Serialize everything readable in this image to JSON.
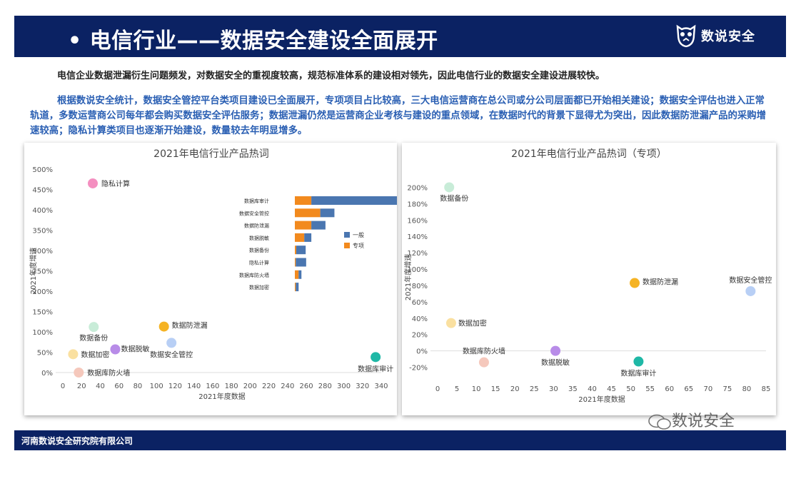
{
  "header": {
    "title": "电信行业——数据安全建设全面展开",
    "bullet": "•",
    "logo_text": "数说安全"
  },
  "intro": "电信企业数据泄漏衍生问题频发，对数据安全的重视度较高，规范标准体系的建设相对领先，因此电信行业的数据安全建设进展较快。",
  "paragraph": "根据数说安全统计，数据安全管控平台类项目建设已全面展开，专项项目占比较高，三大电信运营商在总公司或分公司层面都已开始相关建设；数据安全评估也进入正常轨道，多数运营商公司每年都会购买数据安全评估服务；数据泄漏仍然是运营商企业考核与建设的重点领域，在数据时代的背景下显得尤为突出，因此数据防泄漏产品的采购增速较高；隐私计算类项目也逐渐开始建设，数量较去年明显增多。",
  "watermark": "数说安全",
  "footer": {
    "company": "河南数说安全研究院有限公司"
  },
  "chart_data": [
    {
      "type": "scatter",
      "title": "2021年电信行业产品热词",
      "xlabel": "2021年度数据",
      "ylabel": "2021年度增速",
      "xlim": [
        0,
        340
      ],
      "ylim": [
        0,
        5
      ],
      "x_ticks": [
        "0",
        "20",
        "40",
        "60",
        "80",
        "100",
        "120",
        "140",
        "160",
        "180",
        "200",
        "220",
        "240",
        "260",
        "280",
        "300",
        "320",
        "340"
      ],
      "y_ticks": [
        "0%",
        "50%",
        "100%",
        "150%",
        "200%",
        "250%",
        "300%",
        "350%",
        "400%",
        "450%",
        "500%"
      ],
      "points": [
        {
          "label": "隐私计算",
          "x": 32,
          "y": 4.65,
          "color": "#f48fc0"
        },
        {
          "label": "数据备份",
          "x": 33,
          "y": 1.12,
          "color": "#c8ecd8"
        },
        {
          "label": "数据防泄漏",
          "x": 108,
          "y": 1.13,
          "color": "#f5b324"
        },
        {
          "label": "数据脱敏",
          "x": 56,
          "y": 0.57,
          "color": "#b88ce8"
        },
        {
          "label": "数据安全管控",
          "x": 116,
          "y": 0.73,
          "color": "#b8cff5"
        },
        {
          "label": "数据加密",
          "x": 11,
          "y": 0.45,
          "color": "#fae0a0"
        },
        {
          "label": "数据库防火墙",
          "x": 17,
          "y": 0.0,
          "color": "#f5c8bc"
        },
        {
          "label": "数据库审计",
          "x": 334,
          "y": 0.38,
          "color": "#1fb8a6"
        }
      ],
      "inset": {
        "type": "bar",
        "orientation": "horizontal",
        "stacked": true,
        "categories": [
          "数据库审计",
          "数据安全管控",
          "数据防泄漏",
          "数据脱敏",
          "数据备份",
          "隐私计算",
          "数据库防火墙",
          "数据加密"
        ],
        "series": [
          {
            "name": "专项",
            "color": "#f28a1e",
            "values": [
              35,
              54,
              35,
              20,
              3,
              2,
              8,
              2
            ]
          },
          {
            "name": "一般",
            "color": "#4a76b0",
            "values": [
              190,
              30,
              30,
              15,
              20,
              22,
              6,
              6
            ]
          }
        ],
        "legend": "right"
      }
    },
    {
      "type": "scatter",
      "title": "2021年电信行业产品热词（专项）",
      "xlabel": "2021年度数据",
      "ylabel": "2021年度增速",
      "xlim": [
        0,
        85
      ],
      "ylim": [
        -0.3,
        2.1
      ],
      "x_ticks": [
        "0",
        "5",
        "10",
        "15",
        "20",
        "25",
        "30",
        "35",
        "40",
        "45",
        "50",
        "55",
        "60",
        "65",
        "70",
        "75",
        "80",
        "85"
      ],
      "y_ticks": [
        "-20%",
        "0%",
        "20%",
        "40%",
        "60%",
        "80%",
        "100%",
        "120%",
        "140%",
        "160%",
        "180%",
        "200%"
      ],
      "points": [
        {
          "label": "数据备份",
          "x": 3,
          "y": 2.0,
          "color": "#c8ecd8"
        },
        {
          "label": "数据防泄漏",
          "x": 51,
          "y": 0.83,
          "color": "#f5b324"
        },
        {
          "label": "数据安全管控",
          "x": 81,
          "y": 0.73,
          "color": "#b8cff5"
        },
        {
          "label": "数据加密",
          "x": 3.5,
          "y": 0.34,
          "color": "#fae0a0"
        },
        {
          "label": "数据库防火墙",
          "x": 12,
          "y": -0.14,
          "color": "#f5c8bc"
        },
        {
          "label": "数据脱敏",
          "x": 30.5,
          "y": 0.0,
          "color": "#b88ce8"
        },
        {
          "label": "数据库审计",
          "x": 52,
          "y": -0.13,
          "color": "#1fb8a6"
        }
      ]
    }
  ]
}
